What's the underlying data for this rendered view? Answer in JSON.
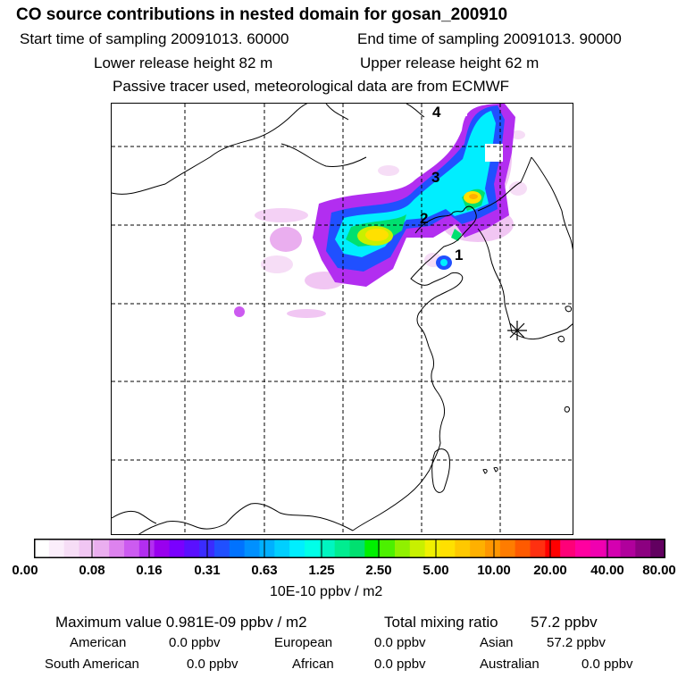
{
  "header": {
    "title": "CO  source contributions in nested domain for gosan_200910",
    "start": "Start time of sampling 20091013. 60000",
    "end": "End time of sampling 20091013. 90000",
    "lower": "Lower release height   82 m",
    "upper": "Upper release height   62 m",
    "note": "Passive tracer used, meteorological data are from ECMWF"
  },
  "map": {
    "site_markers": [
      "1",
      "2",
      "3",
      "4"
    ],
    "receptor_icon": "asterisk-icon"
  },
  "colorbar": {
    "tick_labels": [
      "0.00",
      "0.08",
      "0.16",
      "0.31",
      "0.63",
      "1.25",
      "2.50",
      "5.00",
      "10.00",
      "20.00",
      "40.00",
      "80.00"
    ],
    "unit": "10E-10 ppbv / m2",
    "colors": [
      "#ffffff",
      "#fbeefb",
      "#f6ddf6",
      "#f1c6f3",
      "#eaaeef",
      "#dd82ee",
      "#cc5bf0",
      "#b22ef0",
      "#9900ee",
      "#7a00ff",
      "#5a10ff",
      "#3a2cff",
      "#2050ff",
      "#0072ff",
      "#0090ff",
      "#00b0ff",
      "#00cfff",
      "#00eeff",
      "#00ffe8",
      "#00f5c0",
      "#00ed90",
      "#00e070",
      "#00f000",
      "#4cf000",
      "#90f000",
      "#c8f000",
      "#f0f000",
      "#ffe000",
      "#ffc800",
      "#ffb000",
      "#ff9600",
      "#ff7c00",
      "#ff5a00",
      "#ff3010",
      "#ff0000",
      "#ff0078",
      "#ff00a0",
      "#f000b0",
      "#d400b0",
      "#b0009c",
      "#8c0080",
      "#620060"
    ]
  },
  "summary": {
    "max_label": "Maximum value  0.981E-09 ppbv / m2",
    "total_label": "Total mixing ratio",
    "total_value": "57.2 ppbv",
    "regions": [
      {
        "name": "American",
        "value": "0.0 ppbv"
      },
      {
        "name": "European",
        "value": "0.0 ppbv"
      },
      {
        "name": "Asian",
        "value": "57.2 ppbv"
      },
      {
        "name": "South American",
        "value": "0.0 ppbv"
      },
      {
        "name": "African",
        "value": "0.0 ppbv"
      },
      {
        "name": "Australian",
        "value": "0.0 ppbv"
      }
    ]
  }
}
